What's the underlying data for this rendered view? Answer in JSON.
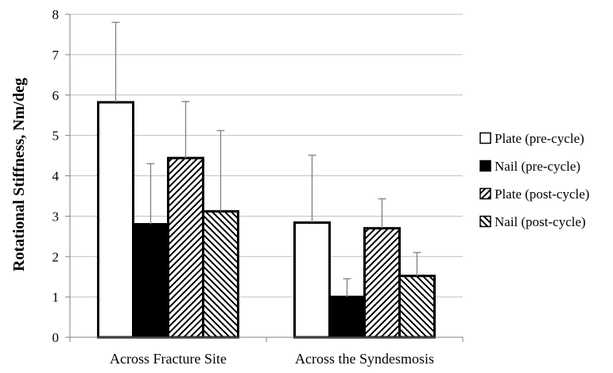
{
  "chart_data": {
    "type": "bar",
    "title": "",
    "xlabel": "",
    "ylabel": "Rotational Stiffness, Nm/deg",
    "ylim": [
      0,
      8
    ],
    "yticks": [
      "0",
      "1",
      "2",
      "3",
      "4",
      "5",
      "6",
      "7",
      "8"
    ],
    "grid": true,
    "legend_position": "right",
    "categories": [
      "Across Fracture Site",
      "Across the Syndesmosis"
    ],
    "series": [
      {
        "name": "Plate (pre-cycle)",
        "pattern": "open",
        "values": [
          5.82,
          2.84
        ],
        "error": [
          1.98,
          1.67
        ]
      },
      {
        "name": "Nail (pre-cycle)",
        "pattern": "solid",
        "values": [
          2.8,
          1.0
        ],
        "error": [
          1.5,
          0.45
        ]
      },
      {
        "name": "Plate (post-cycle)",
        "pattern": "hatch-forward",
        "values": [
          4.44,
          2.7
        ],
        "error": [
          1.4,
          0.73
        ]
      },
      {
        "name": "Nail (post-cycle)",
        "pattern": "hatch-back",
        "values": [
          3.12,
          1.52
        ],
        "error": [
          2.0,
          0.58
        ]
      }
    ],
    "colors": {
      "fill_solid": "#000000",
      "fill_open": "#ffffff",
      "grid": "#bfbfbf",
      "error_bar": "#808080"
    }
  }
}
